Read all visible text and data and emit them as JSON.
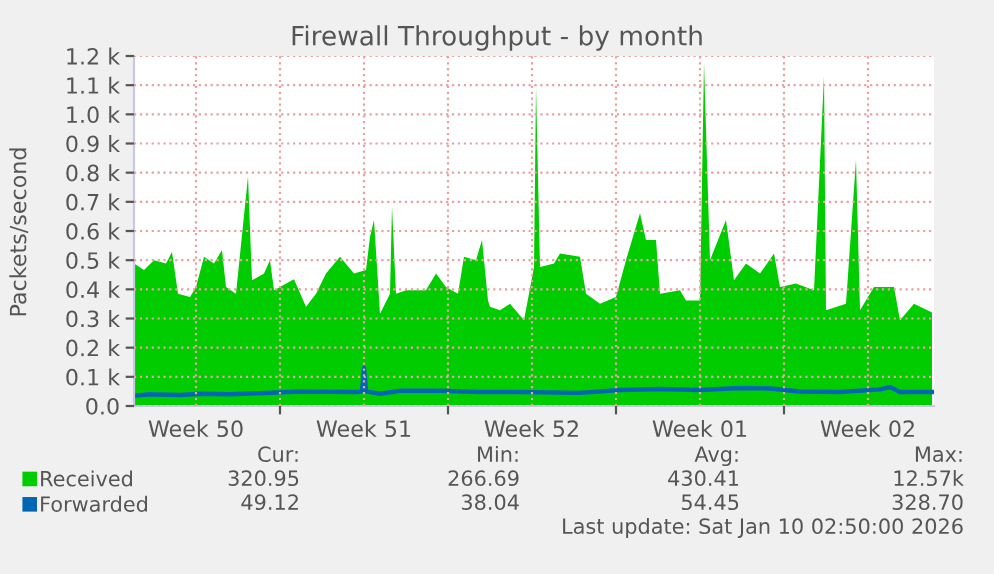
{
  "chart_data": {
    "type": "area",
    "title": "Firewall Throughput - by month",
    "ylabel": "Packets/second",
    "series": [
      {
        "name": "Received",
        "color": "#00cc00",
        "x": [
          "2025-12-08T22:00",
          "2025-12-09T08:00",
          "2025-12-09T18:00",
          "2025-12-10T06:00",
          "2025-12-10T12:00",
          "2025-12-10T18:00",
          "2025-12-11T06:00",
          "2025-12-11T12:00",
          "2025-12-11T20:00",
          "2025-12-12T06:00",
          "2025-12-12T14:00",
          "2025-12-12T18:00",
          "2025-12-13T04:00",
          "2025-12-13T16:00",
          "2025-12-13T20:00",
          "2025-12-14T08:00",
          "2025-12-14T14:00",
          "2025-12-14T18:00",
          "2025-12-15T14:00",
          "2025-12-16T02:00",
          "2025-12-16T12:00",
          "2025-12-16T22:00",
          "2025-12-17T12:00",
          "2025-12-18T02:00",
          "2025-12-18T14:00",
          "2025-12-18T18:00",
          "2025-12-18T22:00",
          "2025-12-19T04:00",
          "2025-12-19T14:00",
          "2025-12-19T16:00",
          "2025-12-19T20:00",
          "2025-12-20T06:00",
          "2025-12-21T02:00",
          "2025-12-21T12:00",
          "2025-12-21T22:00",
          "2025-12-22T10:00",
          "2025-12-22T16:00",
          "2025-12-23T04:00",
          "2025-12-23T10:00",
          "2025-12-23T16:00",
          "2025-12-23T18:00",
          "2025-12-24T04:00",
          "2025-12-24T14:00",
          "2025-12-25T04:00",
          "2025-12-25T14:00",
          "2025-12-25T16:00",
          "2025-12-25T20:00",
          "2025-12-26T10:00",
          "2025-12-26T16:00",
          "2025-12-27T12:00",
          "2025-12-27T18:00",
          "2025-12-28T08:00",
          "2025-12-29T00:00",
          "2025-12-29T10:00",
          "2025-12-30T00:00",
          "2025-12-30T06:00",
          "2025-12-30T16:00",
          "2025-12-30T20:00",
          "2025-12-31T16:00",
          "2025-12-31T22:00",
          "2026-01-01T12:00",
          "2026-01-01T16:00",
          "2026-01-01T22:00",
          "2026-01-02T14:00",
          "2026-01-02T22:00",
          "2026-01-03T10:00",
          "2026-01-04T00:00",
          "2026-01-04T14:00",
          "2026-01-04T20:00",
          "2026-01-05T12:00",
          "2026-01-06T06:00",
          "2026-01-06T16:00",
          "2026-01-06T18:00",
          "2026-01-07T14:00",
          "2026-01-08T00:00",
          "2026-01-08T04:00",
          "2026-01-08T18:00",
          "2026-01-09T14:00",
          "2026-01-09T20:00",
          "2026-01-10T10:00",
          "2026-01-11T04:00"
        ],
        "values": [
          489,
          466,
          500,
          489,
          528,
          385,
          374,
          408,
          512,
          489,
          535,
          408,
          385,
          787,
          431,
          454,
          500,
          397,
          435,
          340,
          385,
          454,
          512,
          454,
          466,
          580,
          638,
          316,
          385,
          684,
          385,
          397,
          397,
          454,
          408,
          385,
          512,
          500,
          569,
          362,
          340,
          328,
          351,
          294,
          477,
          1097,
          477,
          489,
          523,
          512,
          385,
          351,
          374,
          500,
          661,
          569,
          569,
          385,
          397,
          362,
          362,
          1177,
          500,
          638,
          431,
          489,
          454,
          523,
          408,
          420,
          397,
          1131,
          328,
          351,
          844,
          328,
          408,
          408,
          294,
          351,
          321
        ]
      },
      {
        "name": "Forwarded",
        "type": "line",
        "color": "#0066b3",
        "x": [
          "2025-12-08T22:00",
          "2025-12-09T14:00",
          "2025-12-10T20:00",
          "2025-12-11T16:00",
          "2025-12-12T22:00",
          "2025-12-14T04:00",
          "2025-12-15T20:00",
          "2025-12-18T04:00",
          "2025-12-18T10:00",
          "2025-12-18T12:00",
          "2025-12-18T14:00",
          "2025-12-19T04:00",
          "2025-12-20T00:00",
          "2025-12-21T16:00",
          "2025-12-23T08:00",
          "2025-12-25T00:00",
          "2025-12-27T12:00",
          "2025-12-29T04:00",
          "2025-12-30T20:00",
          "2026-01-01T12:00",
          "2026-01-03T04:00",
          "2026-01-04T10:00",
          "2026-01-05T16:00",
          "2026-01-07T08:00",
          "2026-01-09T00:00",
          "2026-01-09T10:00",
          "2026-01-09T20:00",
          "2026-01-11T04:00"
        ],
        "values": [
          35,
          40,
          38,
          42,
          40,
          44,
          50,
          48,
          50,
          130,
          50,
          42,
          52,
          52,
          48,
          48,
          45,
          55,
          58,
          55,
          62,
          60,
          50,
          48,
          57,
          65,
          48,
          48
        ]
      }
    ],
    "xlim": [
      "2025-12-08T22:00",
      "2026-01-11T06:00"
    ],
    "xticks": [
      {
        "value": "2025-12-11T12:00",
        "label": "Week 50"
      },
      {
        "value": "2025-12-15T00:00",
        "label": null
      },
      {
        "value": "2025-12-18T12:00",
        "label": "Week 51"
      },
      {
        "value": "2025-12-22T00:00",
        "label": null
      },
      {
        "value": "2025-12-25T12:00",
        "label": "Week 52"
      },
      {
        "value": "2025-12-29T00:00",
        "label": null
      },
      {
        "value": "2026-01-01T12:00",
        "label": "Week 01"
      },
      {
        "value": "2026-01-05T00:00",
        "label": null
      },
      {
        "value": "2026-01-08T12:00",
        "label": "Week 02"
      }
    ],
    "ylim": [
      0,
      1200
    ],
    "yticks": [
      {
        "value": 0,
        "label": "0.0"
      },
      {
        "value": 100,
        "label": "0.1 k"
      },
      {
        "value": 200,
        "label": "0.2 k"
      },
      {
        "value": 300,
        "label": "0.3 k"
      },
      {
        "value": 400,
        "label": "0.4 k"
      },
      {
        "value": 500,
        "label": "0.5 k"
      },
      {
        "value": 600,
        "label": "0.6 k"
      },
      {
        "value": 700,
        "label": "0.7 k"
      },
      {
        "value": 800,
        "label": "0.8 k"
      },
      {
        "value": 900,
        "label": "0.9 k"
      },
      {
        "value": 1000,
        "label": "1.0 k"
      },
      {
        "value": 1100,
        "label": "1.1 k"
      },
      {
        "value": 1200,
        "label": "1.2 k"
      }
    ],
    "grid": true,
    "legend": "bottom left",
    "line_style": "solid",
    "annotations": [
      "Cur:",
      "Min:",
      "Avg:",
      "Max:",
      "320.95",
      "266.69",
      "430.41",
      "12.57k",
      "49.12",
      "38.04",
      "54.45",
      "328.70",
      "Last update: Sat Jan 10 02:50:00 2026"
    ]
  }
}
